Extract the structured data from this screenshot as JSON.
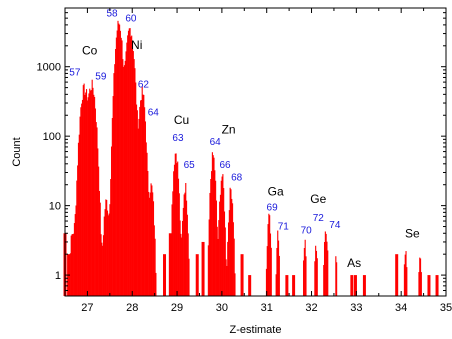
{
  "chart_data": {
    "type": "bar",
    "title": "",
    "xlabel": "Z-estimate",
    "ylabel": "Count",
    "xlim": [
      26.5,
      35
    ],
    "ylim": [
      0.5,
      7000
    ],
    "y_scale": "log",
    "grid": false,
    "bar_color": "#ff0000",
    "x_ticks": [
      27,
      28,
      29,
      30,
      31,
      32,
      33,
      34,
      35
    ],
    "y_ticks": [
      {
        "value": 1,
        "label": "1"
      },
      {
        "value": 10,
        "label": "10"
      },
      {
        "value": 100,
        "label": "100"
      },
      {
        "value": 1000,
        "label": "1000"
      }
    ],
    "peaks": [
      {
        "center": 26.67,
        "height": 4,
        "width": 0.18
      },
      {
        "center": 26.92,
        "height": 490,
        "width": 0.2
      },
      {
        "center": 27.1,
        "height": 560,
        "width": 0.2
      },
      {
        "center": 27.42,
        "height": 12,
        "width": 0.14
      },
      {
        "center": 27.7,
        "height": 4500,
        "width": 0.18
      },
      {
        "center": 27.95,
        "height": 3700,
        "width": 0.2
      },
      {
        "center": 28.22,
        "height": 450,
        "width": 0.16
      },
      {
        "center": 28.42,
        "height": 20,
        "width": 0.14
      },
      {
        "center": 28.97,
        "height": 62,
        "width": 0.14
      },
      {
        "center": 29.18,
        "height": 20,
        "width": 0.12
      },
      {
        "center": 29.8,
        "height": 55,
        "width": 0.13
      },
      {
        "center": 30.0,
        "height": 28,
        "width": 0.12
      },
      {
        "center": 30.2,
        "height": 18,
        "width": 0.12
      },
      {
        "center": 31.05,
        "height": 7,
        "width": 0.1
      },
      {
        "center": 31.25,
        "height": 4,
        "width": 0.08
      },
      {
        "center": 31.85,
        "height": 3,
        "width": 0.08
      },
      {
        "center": 32.1,
        "height": 3,
        "width": 0.08
      },
      {
        "center": 32.32,
        "height": 5,
        "width": 0.1
      },
      {
        "center": 32.55,
        "height": 2,
        "width": 0.06
      },
      {
        "center": 34.1,
        "height": 2,
        "width": 0.1
      },
      {
        "center": 34.42,
        "height": 2,
        "width": 0.1
      }
    ],
    "noise_bars": [
      {
        "x": 26.5,
        "count": 4
      },
      {
        "x": 26.58,
        "count": 2
      },
      {
        "x": 28.72,
        "count": 2
      },
      {
        "x": 28.85,
        "count": 4
      },
      {
        "x": 29.45,
        "count": 2
      },
      {
        "x": 29.58,
        "count": 3
      },
      {
        "x": 30.45,
        "count": 2
      },
      {
        "x": 30.62,
        "count": 1
      },
      {
        "x": 31.45,
        "count": 1
      },
      {
        "x": 31.6,
        "count": 1
      },
      {
        "x": 32.9,
        "count": 1
      },
      {
        "x": 32.98,
        "count": 1
      },
      {
        "x": 33.18,
        "count": 1
      },
      {
        "x": 33.9,
        "count": 2
      },
      {
        "x": 34.62,
        "count": 1
      },
      {
        "x": 34.8,
        "count": 1
      }
    ],
    "annotations": {
      "elements": [
        {
          "text": "Co",
          "x": 27.05,
          "y": 1500
        },
        {
          "text": "Ni",
          "x": 28.1,
          "y": 1800
        },
        {
          "text": "Cu",
          "x": 29.1,
          "y": 150
        },
        {
          "text": "Zn",
          "x": 30.15,
          "y": 110
        },
        {
          "text": "Ga",
          "x": 31.2,
          "y": 14
        },
        {
          "text": "Ge",
          "x": 32.15,
          "y": 11
        },
        {
          "text": "As",
          "x": 32.95,
          "y": 1.3
        },
        {
          "text": "Se",
          "x": 34.25,
          "y": 3.5
        }
      ],
      "isotopes": [
        {
          "text": "57",
          "x": 26.72,
          "y": 750
        },
        {
          "text": "58",
          "x": 27.55,
          "y": 5300
        },
        {
          "text": "59",
          "x": 27.3,
          "y": 650
        },
        {
          "text": "60",
          "x": 27.97,
          "y": 4500
        },
        {
          "text": "62",
          "x": 28.25,
          "y": 500
        },
        {
          "text": "64",
          "x": 28.47,
          "y": 200
        },
        {
          "text": "63",
          "x": 29.02,
          "y": 85
        },
        {
          "text": "65",
          "x": 29.27,
          "y": 35
        },
        {
          "text": "64",
          "x": 29.85,
          "y": 75
        },
        {
          "text": "66",
          "x": 30.07,
          "y": 35
        },
        {
          "text": "68",
          "x": 30.33,
          "y": 23
        },
        {
          "text": "69",
          "x": 31.12,
          "y": 8.5
        },
        {
          "text": "71",
          "x": 31.37,
          "y": 4.5
        },
        {
          "text": "70",
          "x": 31.88,
          "y": 4.0
        },
        {
          "text": "72",
          "x": 32.15,
          "y": 6.0
        },
        {
          "text": "74",
          "x": 32.52,
          "y": 4.8
        }
      ]
    }
  }
}
